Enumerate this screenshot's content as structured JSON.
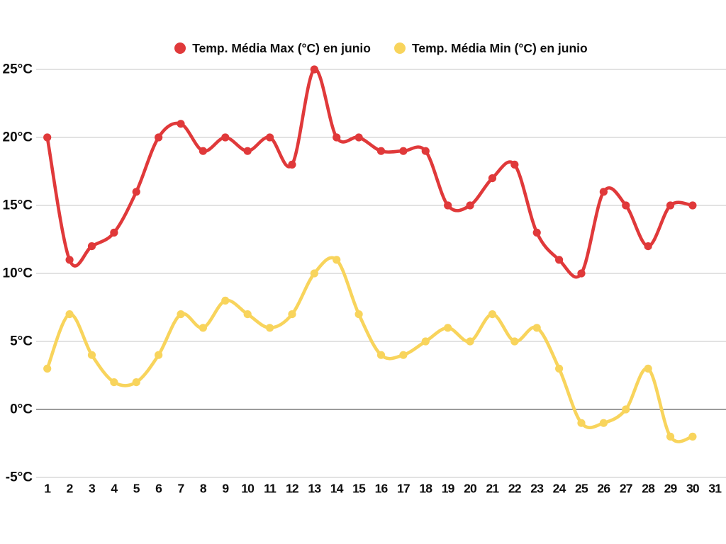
{
  "chart_data": {
    "type": "line",
    "title": "",
    "xlabel": "",
    "ylabel": "",
    "x_tick_labels": [
      "1",
      "2",
      "3",
      "4",
      "5",
      "6",
      "7",
      "8",
      "9",
      "10",
      "11",
      "12",
      "13",
      "14",
      "15",
      "16",
      "17",
      "18",
      "19",
      "20",
      "21",
      "22",
      "23",
      "24",
      "25",
      "26",
      "27",
      "28",
      "29",
      "30",
      "31"
    ],
    "categories": [
      1,
      2,
      3,
      4,
      5,
      6,
      7,
      8,
      9,
      10,
      11,
      12,
      13,
      14,
      15,
      16,
      17,
      18,
      19,
      20,
      21,
      22,
      23,
      24,
      25,
      26,
      27,
      28,
      29,
      30
    ],
    "series": [
      {
        "name": "Temp. Média Max (°C) en junio",
        "color": "#e0393a",
        "values": [
          20,
          11,
          12,
          13,
          16,
          20,
          21,
          19,
          20,
          19,
          20,
          18,
          25,
          20,
          20,
          19,
          19,
          19,
          15,
          15,
          17,
          18,
          13,
          11,
          10,
          16,
          15,
          12,
          15,
          15
        ]
      },
      {
        "name": "Temp. Média Min (°C) en junio",
        "color": "#f8d45c",
        "values": [
          3,
          7,
          4,
          2,
          2,
          4,
          7,
          6,
          8,
          7,
          6,
          7,
          10,
          11,
          7,
          4,
          4,
          5,
          6,
          5,
          7,
          5,
          6,
          3,
          -1,
          -1,
          0,
          3,
          -2,
          -2
        ]
      }
    ],
    "y_ticks": [
      {
        "value": 25,
        "label": "25°C"
      },
      {
        "value": 20,
        "label": "20°C"
      },
      {
        "value": 15,
        "label": "15°C"
      },
      {
        "value": 10,
        "label": "10°C"
      },
      {
        "value": 5,
        "label": "5°C"
      },
      {
        "value": 0,
        "label": "0°C"
      },
      {
        "value": -5,
        "label": "-5°C"
      }
    ],
    "ylim": [
      -5,
      25
    ],
    "grid": "horizontal",
    "gridline_color": "#c6c6c6",
    "zero_line_color": "#606060",
    "legend_position": "top-center",
    "smoothing": "catmull-rom",
    "background_color": "#ffffff",
    "label_color": "#0d0d0d"
  }
}
